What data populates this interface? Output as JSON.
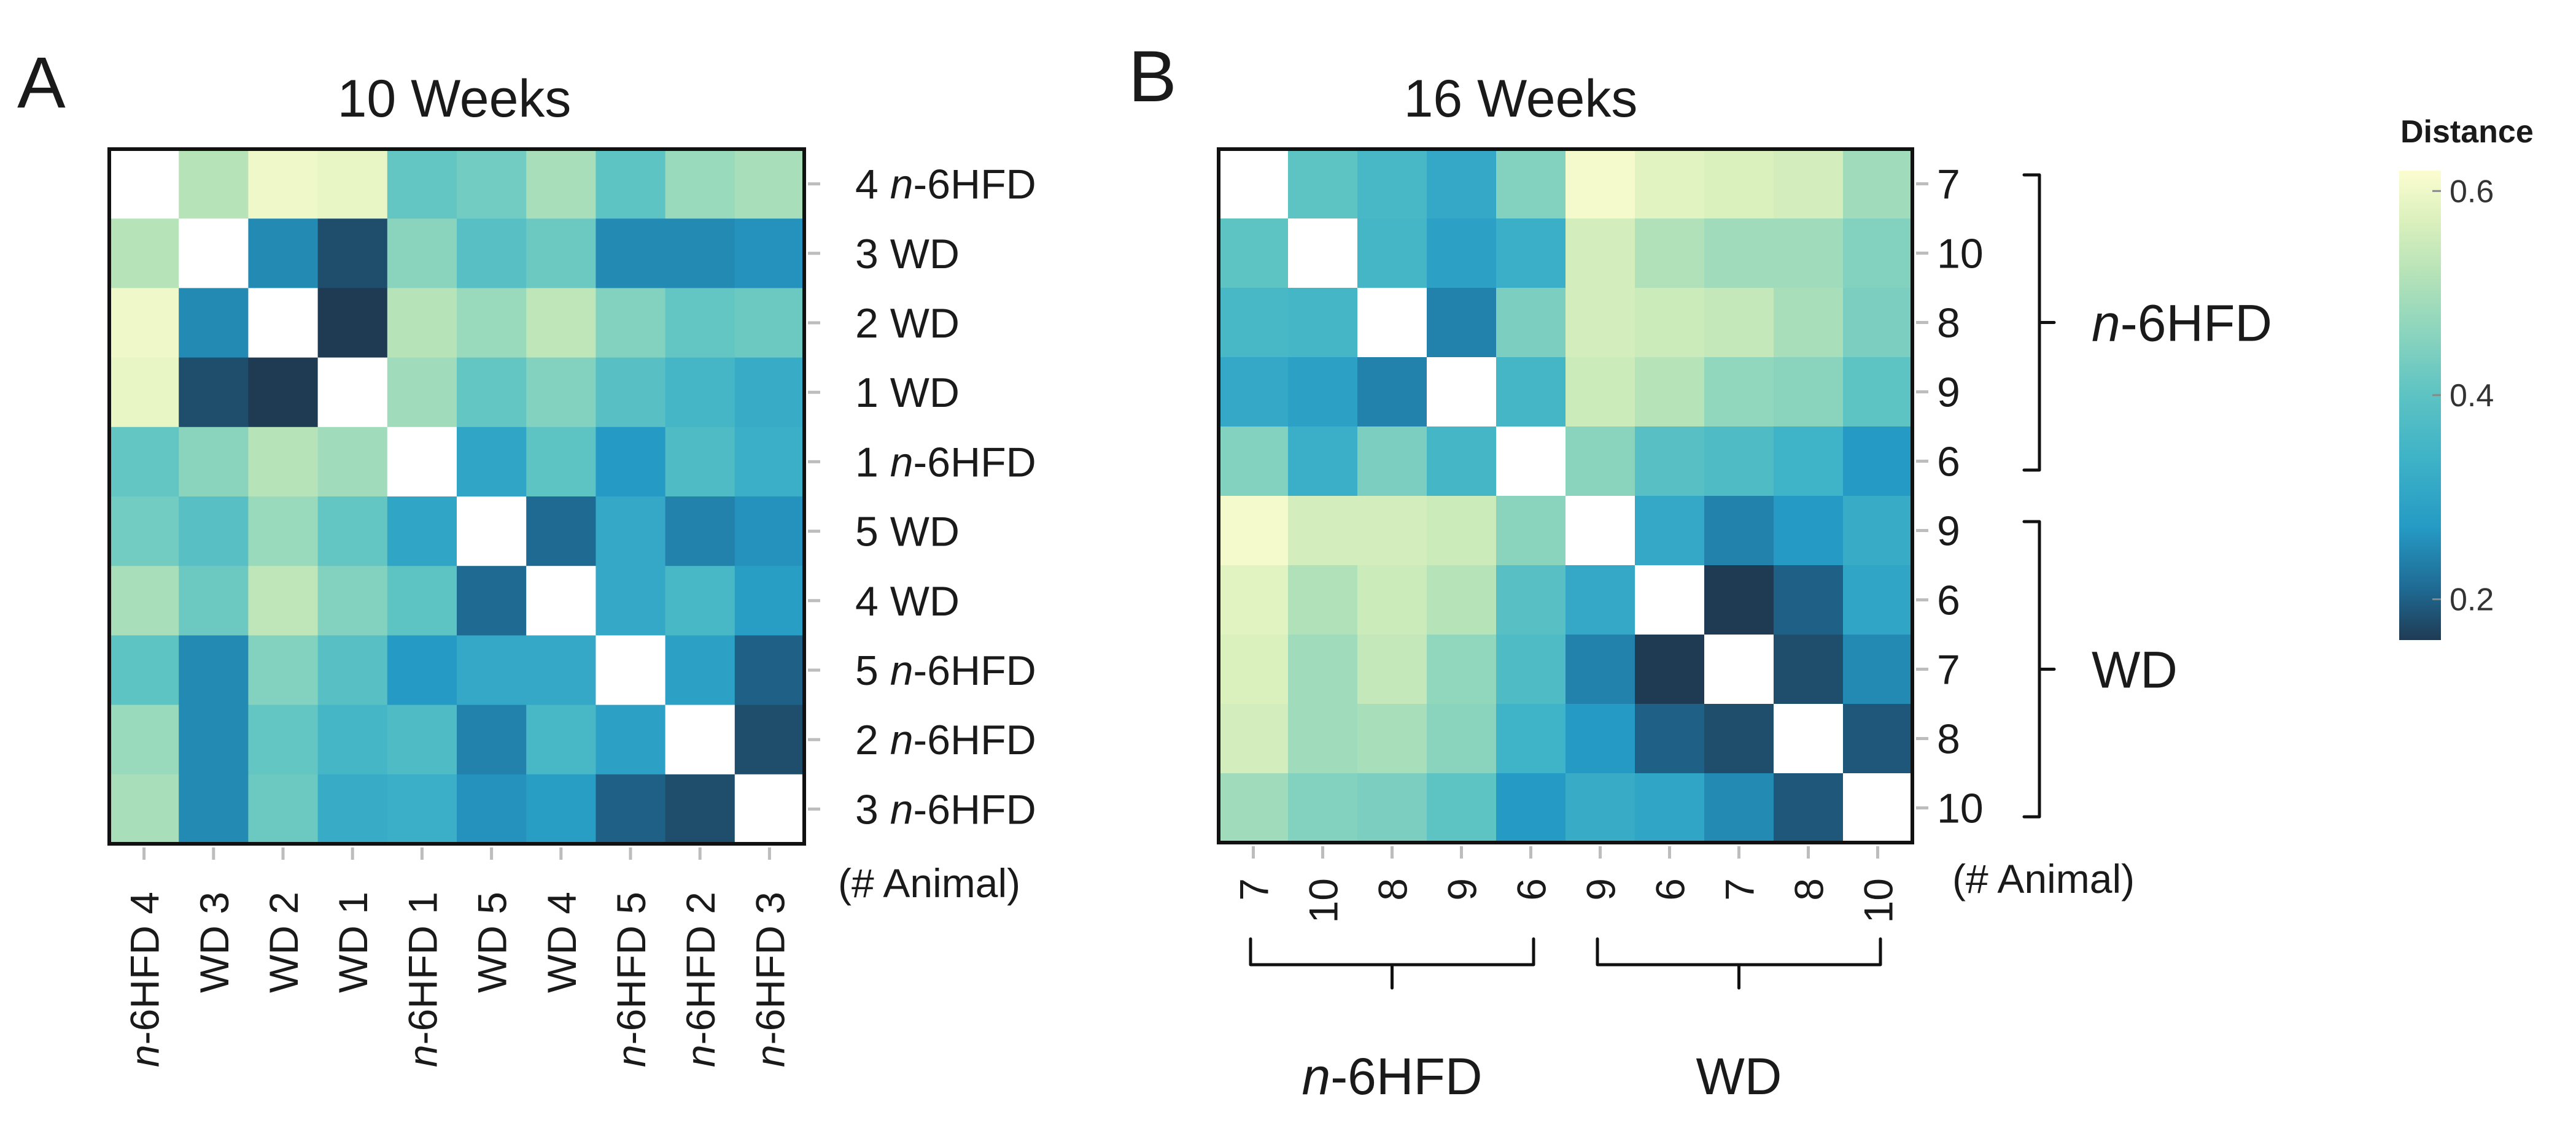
{
  "chart_data": {
    "type": "heatmap",
    "colorbar": {
      "title": "Distance",
      "ticks": [
        0.6,
        0.4,
        0.2
      ],
      "tick_labels": [
        "0.6",
        "0.4",
        "0.2"
      ],
      "range": [
        0.16,
        0.62
      ],
      "stops": [
        {
          "v": 0.16,
          "color": "#1f3b54"
        },
        {
          "v": 0.21,
          "color": "#1f6a93"
        },
        {
          "v": 0.27,
          "color": "#259ac4"
        },
        {
          "v": 0.34,
          "color": "#3fb3c7"
        },
        {
          "v": 0.4,
          "color": "#5dc3c3"
        },
        {
          "v": 0.46,
          "color": "#8ad4be"
        },
        {
          "v": 0.52,
          "color": "#b7e3b8"
        },
        {
          "v": 0.57,
          "color": "#daf0bd"
        },
        {
          "v": 0.62,
          "color": "#fcfdd0"
        }
      ]
    },
    "panels": [
      {
        "letter": "A",
        "title": "10 Weeks",
        "axis_note": "(# Animal)",
        "row_labels": [
          {
            "num": "4",
            "group_prefix": "n",
            "group_rest": "-6HFD"
          },
          {
            "num": "3",
            "group_prefix": "",
            "group_rest": "WD"
          },
          {
            "num": "2",
            "group_prefix": "",
            "group_rest": "WD"
          },
          {
            "num": "1",
            "group_prefix": "",
            "group_rest": "WD"
          },
          {
            "num": "1",
            "group_prefix": "n",
            "group_rest": "-6HFD"
          },
          {
            "num": "5",
            "group_prefix": "",
            "group_rest": "WD"
          },
          {
            "num": "4",
            "group_prefix": "",
            "group_rest": "WD"
          },
          {
            "num": "5",
            "group_prefix": "n",
            "group_rest": "-6HFD"
          },
          {
            "num": "2",
            "group_prefix": "n",
            "group_rest": "-6HFD"
          },
          {
            "num": "3",
            "group_prefix": "n",
            "group_rest": "-6HFD"
          }
        ],
        "col_labels": [
          {
            "num": "4",
            "group_prefix": "n",
            "group_rest": "-6HFD"
          },
          {
            "num": "3",
            "group_prefix": "",
            "group_rest": "WD"
          },
          {
            "num": "2",
            "group_prefix": "",
            "group_rest": "WD"
          },
          {
            "num": "1",
            "group_prefix": "",
            "group_rest": "WD"
          },
          {
            "num": "1",
            "group_prefix": "n",
            "group_rest": "-6HFD"
          },
          {
            "num": "5",
            "group_prefix": "",
            "group_rest": "WD"
          },
          {
            "num": "4",
            "group_prefix": "",
            "group_rest": "WD"
          },
          {
            "num": "5",
            "group_prefix": "n",
            "group_rest": "-6HFD"
          },
          {
            "num": "2",
            "group_prefix": "n",
            "group_rest": "-6HFD"
          },
          {
            "num": "3",
            "group_prefix": "n",
            "group_rest": "-6HFD"
          }
        ],
        "matrix": [
          [
            null,
            0.52,
            0.6,
            0.59,
            0.41,
            0.43,
            0.5,
            0.4,
            0.48,
            0.5
          ],
          [
            0.52,
            null,
            0.25,
            0.18,
            0.46,
            0.39,
            0.42,
            0.25,
            0.25,
            0.26
          ],
          [
            0.6,
            0.25,
            null,
            0.16,
            0.52,
            0.48,
            0.53,
            0.45,
            0.41,
            0.42
          ],
          [
            0.59,
            0.18,
            0.16,
            null,
            0.49,
            0.41,
            0.45,
            0.39,
            0.35,
            0.32
          ],
          [
            0.41,
            0.46,
            0.52,
            0.49,
            null,
            0.3,
            0.4,
            0.27,
            0.37,
            0.33
          ],
          [
            0.43,
            0.39,
            0.48,
            0.41,
            0.3,
            null,
            0.21,
            0.31,
            0.24,
            0.26
          ],
          [
            0.5,
            0.42,
            0.53,
            0.45,
            0.4,
            0.21,
            null,
            0.31,
            0.36,
            0.28
          ],
          [
            0.4,
            0.25,
            0.45,
            0.39,
            0.27,
            0.31,
            0.31,
            null,
            0.29,
            0.2
          ],
          [
            0.48,
            0.25,
            0.41,
            0.35,
            0.37,
            0.24,
            0.36,
            0.29,
            null,
            0.18
          ],
          [
            0.5,
            0.25,
            0.42,
            0.32,
            0.33,
            0.26,
            0.28,
            0.2,
            0.18,
            null
          ]
        ]
      },
      {
        "letter": "B",
        "title": "16 Weeks",
        "axis_note": "(# Animal)",
        "row_labels": [
          "7",
          "10",
          "8",
          "9",
          "6",
          "9",
          "6",
          "7",
          "8",
          "10"
        ],
        "col_labels": [
          "7",
          "10",
          "8",
          "9",
          "6",
          "9",
          "6",
          "7",
          "8",
          "10"
        ],
        "row_groups": [
          {
            "prefix": "n",
            "rest": "-6HFD",
            "start": 0,
            "end": 4
          },
          {
            "prefix": "",
            "rest": "WD",
            "start": 5,
            "end": 9
          }
        ],
        "col_groups": [
          {
            "prefix": "n",
            "rest": "-6HFD",
            "start": 0,
            "end": 4
          },
          {
            "prefix": "",
            "rest": "WD",
            "start": 5,
            "end": 9
          }
        ],
        "matrix": [
          [
            null,
            0.4,
            0.36,
            0.31,
            0.45,
            0.61,
            0.58,
            0.57,
            0.56,
            0.49
          ],
          [
            0.4,
            null,
            0.35,
            0.29,
            0.33,
            0.56,
            0.51,
            0.49,
            0.49,
            0.45
          ],
          [
            0.36,
            0.35,
            null,
            0.24,
            0.44,
            0.56,
            0.55,
            0.54,
            0.5,
            0.44
          ],
          [
            0.31,
            0.29,
            0.24,
            null,
            0.35,
            0.55,
            0.52,
            0.47,
            0.46,
            0.4
          ],
          [
            0.45,
            0.33,
            0.44,
            0.35,
            null,
            0.46,
            0.39,
            0.37,
            0.34,
            0.27
          ],
          [
            0.61,
            0.56,
            0.56,
            0.55,
            0.46,
            null,
            0.31,
            0.24,
            0.27,
            0.32
          ],
          [
            0.58,
            0.51,
            0.55,
            0.52,
            0.39,
            0.31,
            null,
            0.16,
            0.2,
            0.3
          ],
          [
            0.57,
            0.49,
            0.54,
            0.47,
            0.37,
            0.24,
            0.16,
            null,
            0.18,
            0.25
          ],
          [
            0.56,
            0.49,
            0.5,
            0.46,
            0.34,
            0.27,
            0.2,
            0.18,
            null,
            0.19
          ],
          [
            0.49,
            0.45,
            0.44,
            0.4,
            0.27,
            0.32,
            0.3,
            0.25,
            0.19,
            null
          ]
        ]
      }
    ]
  }
}
